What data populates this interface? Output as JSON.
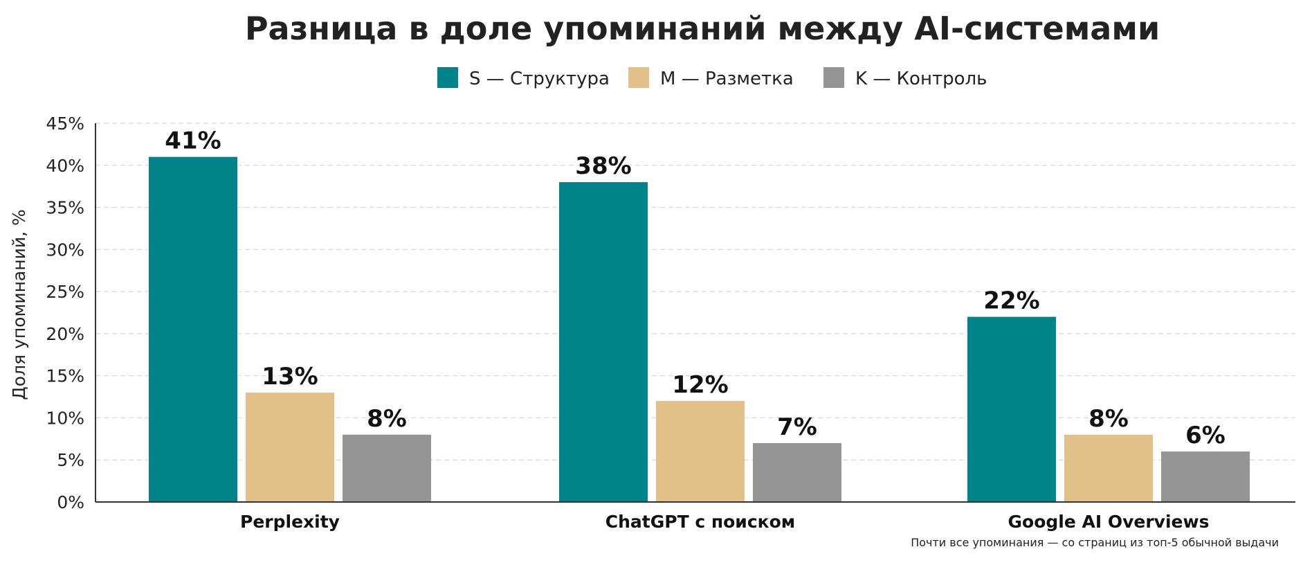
{
  "chart_data": {
    "type": "bar",
    "title": "Разница в доле упоминаний между AI-системами",
    "ylabel": "Доля упоминаний, %",
    "xlabel": "",
    "ylim": [
      0,
      45
    ],
    "yticks": [
      0,
      5,
      10,
      15,
      20,
      25,
      30,
      35,
      40,
      45
    ],
    "ytick_suffix": "%",
    "grid": true,
    "legend_position": "top-center",
    "categories": [
      "Perplexity",
      "ChatGPT с поиском",
      "Google AI Overviews"
    ],
    "series": [
      {
        "name": "S — Структура",
        "color": "#00848a",
        "values": [
          41,
          38,
          22
        ]
      },
      {
        "name": "M — Разметка",
        "color": "#e2c08a",
        "values": [
          13,
          12,
          8
        ]
      },
      {
        "name": "K — Контроль",
        "color": "#959595",
        "values": [
          8,
          7,
          6
        ]
      }
    ],
    "annotation": "Почти все упоминания — со страниц из топ-5 обычной выдачи"
  }
}
